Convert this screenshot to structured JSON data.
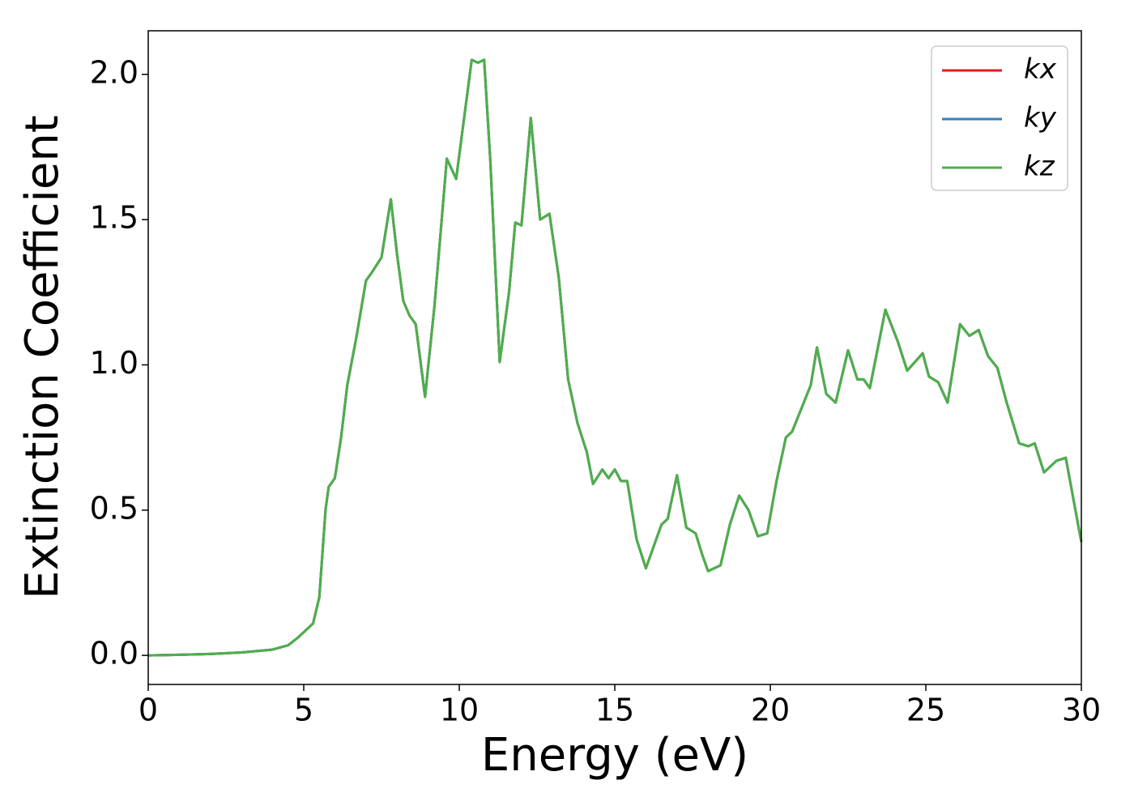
{
  "chart_data": {
    "type": "line",
    "xlabel": "Energy (eV)",
    "ylabel": "Extinction Coefficient",
    "xlim": [
      0,
      30
    ],
    "ylim": [
      -0.1,
      2.15
    ],
    "xticks": [
      0,
      5,
      10,
      15,
      20,
      25,
      30
    ],
    "yticks": [
      {
        "value": 0,
        "label": "0.0"
      },
      0.5,
      {
        "value": 1,
        "label": "1.0"
      },
      1.5,
      {
        "value": 2,
        "label": "2.0"
      }
    ],
    "legend": "upper right",
    "x": [
      0,
      1,
      2,
      3,
      4,
      4.5,
      4.8,
      5.0,
      5.3,
      5.5,
      5.7,
      5.8,
      6.0,
      6.2,
      6.4,
      6.7,
      7.0,
      7.2,
      7.5,
      7.8,
      8.0,
      8.2,
      8.4,
      8.6,
      8.9,
      9.2,
      9.6,
      9.9,
      10.4,
      10.6,
      10.8,
      11.0,
      11.3,
      11.6,
      11.8,
      12.0,
      12.3,
      12.6,
      12.9,
      13.2,
      13.5,
      13.8,
      14.1,
      14.3,
      14.6,
      14.8,
      15.0,
      15.2,
      15.4,
      15.7,
      16.0,
      16.2,
      16.5,
      16.7,
      17.0,
      17.3,
      17.6,
      17.8,
      18.0,
      18.2,
      18.4,
      18.7,
      19.0,
      19.3,
      19.6,
      19.9,
      20.2,
      20.5,
      20.7,
      21.0,
      21.3,
      21.5,
      21.8,
      22.1,
      22.5,
      22.8,
      23.0,
      23.2,
      23.7,
      24.1,
      24.4,
      24.9,
      25.1,
      25.4,
      25.7,
      26.1,
      26.4,
      26.7,
      27.0,
      27.3,
      27.6,
      28.0,
      28.3,
      28.5,
      28.8,
      29.2,
      29.5,
      30.0
    ],
    "series": [
      {
        "name": "kx",
        "color": "#e41a1c",
        "values": [
          0,
          0.002,
          0.005,
          0.01,
          0.02,
          0.035,
          0.06,
          0.08,
          0.11,
          0.2,
          0.5,
          0.58,
          0.61,
          0.75,
          0.93,
          1.1,
          1.29,
          1.32,
          1.37,
          1.57,
          1.38,
          1.22,
          1.17,
          1.14,
          0.89,
          1.2,
          1.71,
          1.64,
          2.05,
          2.04,
          2.05,
          1.7,
          1.01,
          1.25,
          1.49,
          1.48,
          1.85,
          1.5,
          1.52,
          1.3,
          0.95,
          0.8,
          0.7,
          0.59,
          0.64,
          0.61,
          0.64,
          0.6,
          0.6,
          0.4,
          0.3,
          0.36,
          0.45,
          0.47,
          0.62,
          0.44,
          0.42,
          0.35,
          0.29,
          0.3,
          0.31,
          0.45,
          0.55,
          0.5,
          0.41,
          0.42,
          0.6,
          0.75,
          0.77,
          0.85,
          0.93,
          1.06,
          0.9,
          0.87,
          1.05,
          0.95,
          0.95,
          0.92,
          1.19,
          1.08,
          0.98,
          1.04,
          0.96,
          0.94,
          0.87,
          1.14,
          1.1,
          1.12,
          1.03,
          0.99,
          0.87,
          0.73,
          0.72,
          0.73,
          0.63,
          0.67,
          0.68,
          0.39
        ]
      },
      {
        "name": "ky",
        "color": "#377eb8",
        "values": [
          0,
          0.002,
          0.005,
          0.01,
          0.02,
          0.035,
          0.06,
          0.08,
          0.11,
          0.2,
          0.5,
          0.58,
          0.61,
          0.75,
          0.93,
          1.1,
          1.29,
          1.32,
          1.37,
          1.57,
          1.38,
          1.22,
          1.17,
          1.14,
          0.89,
          1.2,
          1.71,
          1.64,
          2.05,
          2.04,
          2.05,
          1.7,
          1.01,
          1.25,
          1.49,
          1.48,
          1.85,
          1.5,
          1.52,
          1.3,
          0.95,
          0.8,
          0.7,
          0.59,
          0.64,
          0.61,
          0.64,
          0.6,
          0.6,
          0.4,
          0.3,
          0.36,
          0.45,
          0.47,
          0.62,
          0.44,
          0.42,
          0.35,
          0.29,
          0.3,
          0.31,
          0.45,
          0.55,
          0.5,
          0.41,
          0.42,
          0.6,
          0.75,
          0.77,
          0.85,
          0.93,
          1.06,
          0.9,
          0.87,
          1.05,
          0.95,
          0.95,
          0.92,
          1.19,
          1.08,
          0.98,
          1.04,
          0.96,
          0.94,
          0.87,
          1.14,
          1.1,
          1.12,
          1.03,
          0.99,
          0.87,
          0.73,
          0.72,
          0.73,
          0.63,
          0.67,
          0.68,
          0.39
        ]
      },
      {
        "name": "kz",
        "color": "#4daf4a",
        "values": [
          0,
          0.002,
          0.005,
          0.01,
          0.02,
          0.035,
          0.06,
          0.08,
          0.11,
          0.2,
          0.5,
          0.58,
          0.61,
          0.75,
          0.93,
          1.1,
          1.29,
          1.32,
          1.37,
          1.57,
          1.38,
          1.22,
          1.17,
          1.14,
          0.89,
          1.2,
          1.71,
          1.64,
          2.05,
          2.04,
          2.05,
          1.7,
          1.01,
          1.25,
          1.49,
          1.48,
          1.85,
          1.5,
          1.52,
          1.3,
          0.95,
          0.8,
          0.7,
          0.59,
          0.64,
          0.61,
          0.64,
          0.6,
          0.6,
          0.4,
          0.3,
          0.36,
          0.45,
          0.47,
          0.62,
          0.44,
          0.42,
          0.35,
          0.29,
          0.3,
          0.31,
          0.45,
          0.55,
          0.5,
          0.41,
          0.42,
          0.6,
          0.75,
          0.77,
          0.85,
          0.93,
          1.06,
          0.9,
          0.87,
          1.05,
          0.95,
          0.95,
          0.92,
          1.19,
          1.08,
          0.98,
          1.04,
          0.96,
          0.94,
          0.87,
          1.14,
          1.1,
          1.12,
          1.03,
          0.99,
          0.87,
          0.73,
          0.72,
          0.73,
          0.63,
          0.67,
          0.68,
          0.39
        ]
      }
    ]
  }
}
